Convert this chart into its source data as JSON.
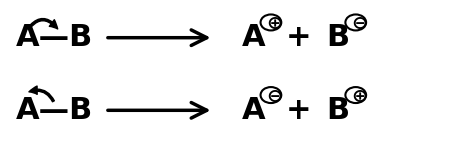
{
  "bg_color": "#ffffff",
  "row1": {
    "reactant": "A—B",
    "arrow_label": "double_curved",
    "product1": "A",
    "product1_super": "⊕",
    "plus": "+",
    "product2": "B",
    "product2_super": "⊖"
  },
  "row2": {
    "reactant": "A—B",
    "arrow_label": "single_curved",
    "product1": "A",
    "product1_super": "⊖",
    "plus": "+",
    "product2": "B",
    "product2_super": "⊕"
  },
  "font_size_main": 22,
  "font_size_super": 14,
  "font_color": "#000000",
  "arrow_color": "#000000"
}
